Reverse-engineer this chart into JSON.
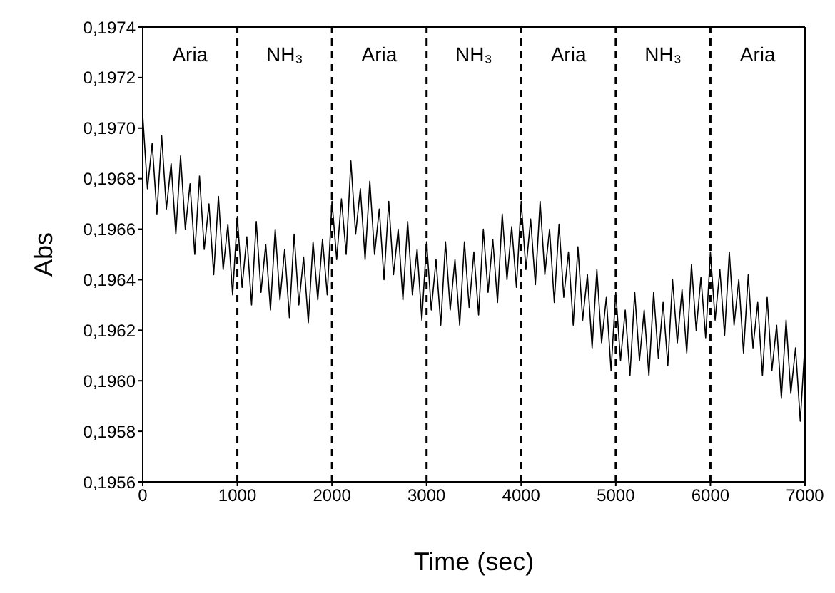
{
  "chart_data": {
    "type": "line",
    "xlabel": "Time (sec)",
    "ylabel": "Abs",
    "x": [
      0,
      50,
      100,
      150,
      200,
      250,
      300,
      350,
      400,
      450,
      500,
      550,
      600,
      650,
      700,
      750,
      800,
      850,
      900,
      950,
      1000,
      1050,
      1100,
      1150,
      1200,
      1250,
      1300,
      1350,
      1400,
      1450,
      1500,
      1550,
      1600,
      1650,
      1700,
      1750,
      1800,
      1850,
      1900,
      1950,
      2000,
      2050,
      2100,
      2150,
      2200,
      2250,
      2300,
      2350,
      2400,
      2450,
      2500,
      2550,
      2600,
      2650,
      2700,
      2750,
      2800,
      2850,
      2900,
      2950,
      3000,
      3050,
      3100,
      3150,
      3200,
      3250,
      3300,
      3350,
      3400,
      3450,
      3500,
      3550,
      3600,
      3650,
      3700,
      3750,
      3800,
      3850,
      3900,
      3950,
      4000,
      4050,
      4100,
      4150,
      4200,
      4250,
      4300,
      4350,
      4400,
      4450,
      4500,
      4550,
      4600,
      4650,
      4700,
      4750,
      4800,
      4850,
      4900,
      4950,
      5000,
      5050,
      5100,
      5150,
      5200,
      5250,
      5300,
      5350,
      5400,
      5450,
      5500,
      5550,
      5600,
      5650,
      5700,
      5750,
      5800,
      5850,
      5900,
      5950,
      6000,
      6050,
      6100,
      6150,
      6200,
      6250,
      6300,
      6350,
      6400,
      6450,
      6500,
      6550,
      6600,
      6650,
      6700,
      6750,
      6800,
      6850,
      6900,
      6950,
      7000
    ],
    "series": [
      {
        "color": "#000000",
        "values": [
          0.19705,
          0.19676,
          0.19694,
          0.19666,
          0.19697,
          0.19668,
          0.19686,
          0.19658,
          0.19689,
          0.1966,
          0.19678,
          0.1965,
          0.19681,
          0.19652,
          0.1967,
          0.19642,
          0.19673,
          0.19644,
          0.19662,
          0.19634,
          0.19665,
          0.19637,
          0.19657,
          0.1963,
          0.19663,
          0.19635,
          0.19654,
          0.19628,
          0.1966,
          0.19632,
          0.19652,
          0.19625,
          0.19658,
          0.1963,
          0.19649,
          0.19623,
          0.19655,
          0.19632,
          0.19656,
          0.19634,
          0.19671,
          0.19648,
          0.19672,
          0.1965,
          0.19687,
          0.19658,
          0.19676,
          0.19648,
          0.19679,
          0.1965,
          0.19668,
          0.1964,
          0.19671,
          0.19642,
          0.1966,
          0.19632,
          0.19663,
          0.19634,
          0.19652,
          0.19624,
          0.19655,
          0.19628,
          0.19648,
          0.19622,
          0.19655,
          0.19628,
          0.19648,
          0.19622,
          0.19655,
          0.19629,
          0.19651,
          0.19626,
          0.1966,
          0.19635,
          0.19656,
          0.19631,
          0.19666,
          0.1964,
          0.19661,
          0.19637,
          0.19671,
          0.19644,
          0.19664,
          0.19638,
          0.19671,
          0.19642,
          0.1966,
          0.19631,
          0.19662,
          0.19633,
          0.19651,
          0.19622,
          0.19653,
          0.19624,
          0.19642,
          0.19613,
          0.19644,
          0.19615,
          0.19633,
          0.19604,
          0.19635,
          0.19608,
          0.19628,
          0.19602,
          0.19635,
          0.19608,
          0.19628,
          0.19602,
          0.19635,
          0.19609,
          0.19631,
          0.19606,
          0.1964,
          0.19615,
          0.19636,
          0.19611,
          0.19646,
          0.1962,
          0.19641,
          0.19617,
          0.19651,
          0.19624,
          0.19644,
          0.19618,
          0.19651,
          0.19622,
          0.1964,
          0.19611,
          0.19642,
          0.19613,
          0.19631,
          0.19602,
          0.19633,
          0.19604,
          0.19622,
          0.19593,
          0.19624,
          0.19595,
          0.19613,
          0.19584,
          0.19615
        ]
      }
    ],
    "xlim": [
      0,
      7000
    ],
    "xticks": [
      0,
      1000,
      2000,
      3000,
      4000,
      5000,
      6000,
      7000
    ],
    "ylim": [
      0.1956,
      0.1974
    ],
    "yticks": [
      {
        "value": 0.1956,
        "label": "0,1956"
      },
      {
        "value": 0.1958,
        "label": "0,1958"
      },
      {
        "value": 0.196,
        "label": "0,1960"
      },
      {
        "value": 0.1962,
        "label": "0,1962"
      },
      {
        "value": 0.1964,
        "label": "0,1964"
      },
      {
        "value": 0.1966,
        "label": "0,1966"
      },
      {
        "value": 0.1968,
        "label": "0,1968"
      },
      {
        "value": 0.197,
        "label": "0,1970"
      },
      {
        "value": 0.1972,
        "label": "0,1972"
      },
      {
        "value": 0.1974,
        "label": "0,1974"
      }
    ],
    "ref_lines": [
      {
        "axis": "x",
        "value": 1000,
        "line_style": "dashed",
        "color": "#000000"
      },
      {
        "axis": "x",
        "value": 2000,
        "line_style": "dashed",
        "color": "#000000"
      },
      {
        "axis": "x",
        "value": 3000,
        "line_style": "dashed",
        "color": "#000000"
      },
      {
        "axis": "x",
        "value": 4000,
        "line_style": "dashed",
        "color": "#000000"
      },
      {
        "axis": "x",
        "value": 5000,
        "line_style": "dashed",
        "color": "#000000"
      },
      {
        "axis": "x",
        "value": 6000,
        "line_style": "dashed",
        "color": "#000000"
      }
    ],
    "annotations": [
      "Aria",
      "NH₃",
      "Aria",
      "NH₃",
      "Aria",
      "NH₃",
      "Aria"
    ],
    "grid": false,
    "legend": false,
    "marker": "none",
    "line_style": "solid"
  }
}
